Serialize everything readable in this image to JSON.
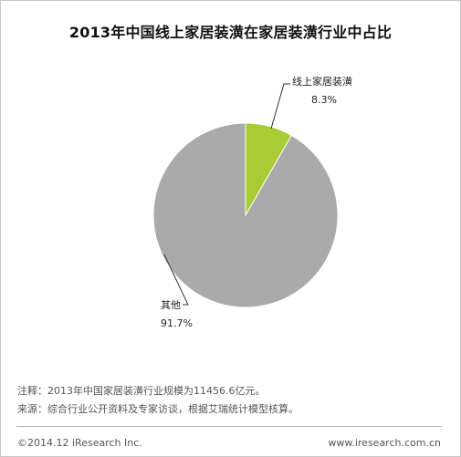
{
  "chart_data": {
    "type": "pie",
    "title": "2013年中国线上家居装潢在家居装潢行业中占比",
    "slices": [
      {
        "label": "线上家居装潢",
        "value": 8.3,
        "value_label": "8.3%",
        "color": "#a8cc33"
      },
      {
        "label": "其他",
        "value": 91.7,
        "value_label": "91.7%",
        "color": "#aaaaaa"
      }
    ]
  },
  "notes": {
    "note1": "注释：2013年中国家居装潢行业规模为11456.6亿元。",
    "note2": "来源：综合行业公开资料及专家访谈，根据艾瑞统计模型核算。"
  },
  "footer": {
    "copyright": "©2014.12 iResearch Inc.",
    "url": "www.iresearch.com.cn"
  }
}
